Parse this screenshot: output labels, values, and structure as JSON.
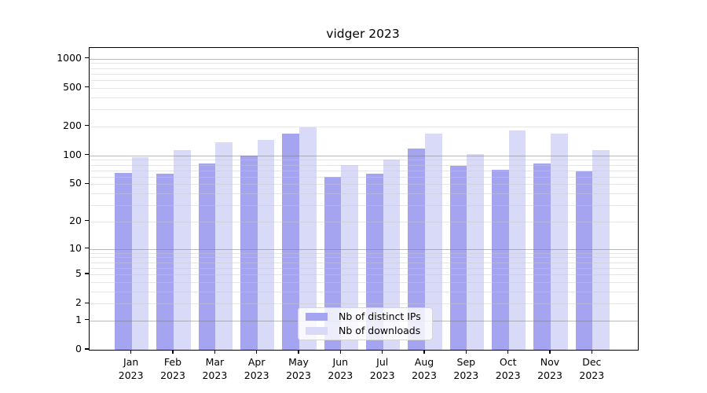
{
  "title": "vidger 2023",
  "legend": {
    "items": [
      {
        "label": "Nb of distinct IPs",
        "color": "#a4a4f0"
      },
      {
        "label": "Nb of downloads",
        "color": "#d9d9f8"
      }
    ]
  },
  "axes": {
    "ytick_labels": [
      "0",
      "1",
      "2",
      "5",
      "10",
      "20",
      "50",
      "100",
      "200",
      "500",
      "1000"
    ],
    "months": [
      "Jan",
      "Feb",
      "Mar",
      "Apr",
      "May",
      "Jun",
      "Jul",
      "Aug",
      "Sep",
      "Oct",
      "Nov",
      "Dec"
    ],
    "year": "2023"
  },
  "chart_data": {
    "type": "bar",
    "title": "vidger 2023",
    "categories": [
      "Jan 2023",
      "Feb 2023",
      "Mar 2023",
      "Apr 2023",
      "May 2023",
      "Jun 2023",
      "Jul 2023",
      "Aug 2023",
      "Sep 2023",
      "Oct 2023",
      "Nov 2023",
      "Dec 2023"
    ],
    "series": [
      {
        "name": "Nb of distinct IPs",
        "color": "#a4a4f0",
        "values": [
          66,
          65,
          82,
          100,
          168,
          60,
          65,
          117,
          78,
          71,
          82,
          68
        ]
      },
      {
        "name": "Nb of downloads",
        "color": "#d9d9f8",
        "values": [
          96,
          113,
          137,
          145,
          195,
          79,
          90,
          167,
          104,
          180,
          167,
          114
        ]
      }
    ],
    "xlabel": "",
    "ylabel": "",
    "yscale": "log1p (ticks at 0,1,2,5,10,20,50,100,200,500,1000)",
    "yticks": [
      0,
      1,
      2,
      5,
      10,
      20,
      50,
      100,
      200,
      500,
      1000
    ],
    "ylim": [
      0,
      1280
    ],
    "grid": "major gridlines at powers of 10, minor log gridlines, drawn above bars",
    "legend_position": "lower center"
  }
}
